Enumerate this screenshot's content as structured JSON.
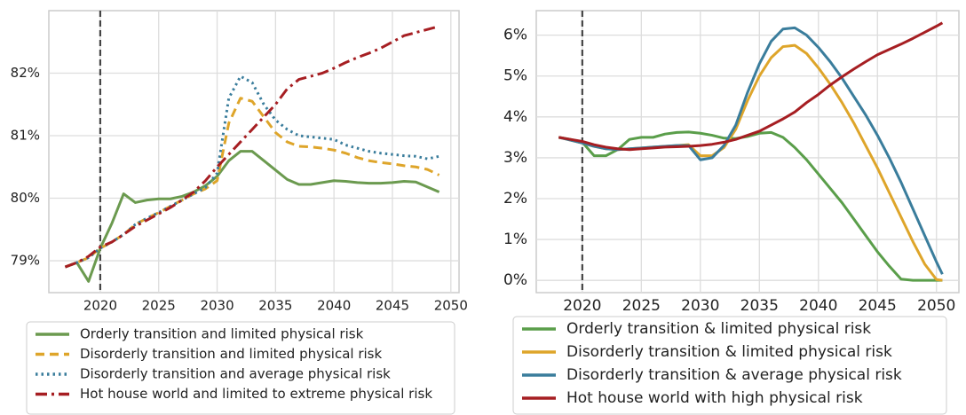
{
  "chart_data": [
    {
      "type": "line",
      "grid": true,
      "vline": 2020,
      "x": [
        2017,
        2018,
        2019,
        2020,
        2021,
        2022,
        2023,
        2024,
        2025,
        2026,
        2027,
        2028,
        2029,
        2030,
        2031,
        2032,
        2033,
        2034,
        2035,
        2036,
        2037,
        2038,
        2039,
        2040,
        2041,
        2042,
        2043,
        2044,
        2045,
        2046,
        2047,
        2048,
        2049
      ],
      "xlim": [
        2015.6,
        2050.7
      ],
      "xticks": [
        2020,
        2025,
        2030,
        2035,
        2040,
        2045,
        2050
      ],
      "ylim": [
        78.49,
        83.0
      ],
      "yticks": [
        {
          "value": 79,
          "label": "79%"
        },
        {
          "value": 80,
          "label": "80%"
        },
        {
          "value": 81,
          "label": "81%"
        },
        {
          "value": 82,
          "label": "82%"
        }
      ],
      "series": [
        {
          "name": "Orderly transition and limited physical risk",
          "color": "#6b9a4f",
          "style": "solid",
          "values": [
            78.9,
            78.97,
            78.67,
            79.2,
            79.6,
            80.07,
            79.93,
            79.97,
            79.99,
            79.99,
            80.03,
            80.1,
            80.2,
            80.35,
            80.6,
            80.75,
            80.75,
            80.6,
            80.45,
            80.3,
            80.22,
            80.22,
            80.25,
            80.28,
            80.27,
            80.25,
            80.24,
            80.24,
            80.25,
            80.27,
            80.26,
            80.18,
            80.1
          ]
        },
        {
          "name": "Disorderly transition and limited physical risk",
          "color": "#dea52a",
          "style": "dashed",
          "values": [
            78.9,
            78.97,
            79.05,
            79.2,
            79.3,
            79.42,
            79.58,
            79.68,
            79.77,
            79.87,
            79.97,
            80.07,
            80.15,
            80.28,
            81.2,
            81.6,
            81.55,
            81.3,
            81.05,
            80.9,
            80.83,
            80.82,
            80.8,
            80.77,
            80.72,
            80.65,
            80.6,
            80.57,
            80.55,
            80.52,
            80.5,
            80.46,
            80.37
          ]
        },
        {
          "name": "Disorderly transition and average physical risk",
          "color": "#3a7d9c",
          "style": "dotted",
          "values": [
            78.9,
            78.97,
            79.05,
            79.2,
            79.3,
            79.42,
            79.58,
            79.68,
            79.77,
            79.87,
            79.97,
            80.07,
            80.17,
            80.4,
            81.6,
            81.95,
            81.85,
            81.5,
            81.25,
            81.1,
            81.0,
            80.98,
            80.96,
            80.94,
            80.85,
            80.8,
            80.75,
            80.72,
            80.7,
            80.68,
            80.67,
            80.63,
            80.67
          ]
        },
        {
          "name": "Hot house world and limited to extreme physical risk",
          "color": "#a61e22",
          "style": "dashdot",
          "values": [
            78.9,
            78.97,
            79.07,
            79.22,
            79.3,
            79.42,
            79.55,
            79.65,
            79.75,
            79.85,
            79.97,
            80.1,
            80.28,
            80.5,
            80.7,
            80.9,
            81.1,
            81.3,
            81.5,
            81.75,
            81.9,
            81.95,
            82.0,
            82.08,
            82.17,
            82.25,
            82.32,
            82.4,
            82.5,
            82.6,
            82.65,
            82.7,
            82.75
          ]
        }
      ]
    },
    {
      "type": "line",
      "grid": true,
      "vline": 2020,
      "x": [
        2018,
        2019,
        2020,
        2021,
        2022,
        2023,
        2024,
        2025,
        2026,
        2027,
        2028,
        2029,
        2030,
        2031,
        2032,
        2033,
        2034,
        2035,
        2036,
        2037,
        2038,
        2039,
        2040,
        2041,
        2042,
        2043,
        2044,
        2045,
        2046,
        2047,
        2048,
        2049,
        2050,
        2050.5
      ],
      "xlim": [
        2016.1,
        2051.9
      ],
      "xticks": [
        2020,
        2025,
        2030,
        2035,
        2040,
        2045,
        2050
      ],
      "ylim": [
        -0.3,
        6.6
      ],
      "yticks": [
        {
          "value": 0,
          "label": "0%"
        },
        {
          "value": 1,
          "label": "1%"
        },
        {
          "value": 2,
          "label": "2%"
        },
        {
          "value": 3,
          "label": "3%"
        },
        {
          "value": 4,
          "label": "4%"
        },
        {
          "value": 5,
          "label": "5%"
        },
        {
          "value": 6,
          "label": "6%"
        }
      ],
      "series": [
        {
          "name": "Orderly transition & limited physical risk",
          "color": "#5a9e4a",
          "style": "solid",
          "values": [
            3.5,
            3.45,
            3.38,
            3.05,
            3.05,
            3.2,
            3.45,
            3.5,
            3.5,
            3.58,
            3.62,
            3.63,
            3.6,
            3.55,
            3.48,
            3.47,
            3.52,
            3.6,
            3.62,
            3.5,
            3.25,
            2.95,
            2.6,
            2.25,
            1.9,
            1.5,
            1.1,
            0.7,
            0.35,
            0.03,
            0,
            0,
            0,
            0
          ]
        },
        {
          "name": "Disorderly transition & limited physical risk",
          "color": "#dea52a",
          "style": "solid",
          "values": [
            3.5,
            3.43,
            3.36,
            3.28,
            3.22,
            3.2,
            3.22,
            3.24,
            3.26,
            3.28,
            3.3,
            3.32,
            3.05,
            3.05,
            3.25,
            3.7,
            4.4,
            5.0,
            5.45,
            5.72,
            5.75,
            5.55,
            5.2,
            4.8,
            4.35,
            3.85,
            3.3,
            2.75,
            2.15,
            1.55,
            0.95,
            0.4,
            0.02,
            0
          ]
        },
        {
          "name": "Disorderly transition & average physical risk",
          "color": "#3a7d9c",
          "style": "solid",
          "values": [
            3.5,
            3.43,
            3.36,
            3.28,
            3.22,
            3.2,
            3.22,
            3.24,
            3.26,
            3.28,
            3.3,
            3.3,
            2.95,
            3.0,
            3.3,
            3.8,
            4.6,
            5.3,
            5.85,
            6.15,
            6.18,
            6.0,
            5.7,
            5.35,
            4.95,
            4.5,
            4.05,
            3.55,
            3.0,
            2.4,
            1.75,
            1.1,
            0.45,
            0.15
          ]
        },
        {
          "name": "Hot house world with high physical risk",
          "color": "#a61e22",
          "style": "solid",
          "values": [
            3.5,
            3.45,
            3.4,
            3.32,
            3.26,
            3.22,
            3.2,
            3.22,
            3.24,
            3.26,
            3.27,
            3.28,
            3.3,
            3.33,
            3.38,
            3.45,
            3.55,
            3.65,
            3.8,
            3.95,
            4.12,
            4.35,
            4.55,
            4.78,
            4.98,
            5.17,
            5.35,
            5.52,
            5.65,
            5.78,
            5.92,
            6.07,
            6.22,
            6.3
          ]
        }
      ]
    }
  ]
}
